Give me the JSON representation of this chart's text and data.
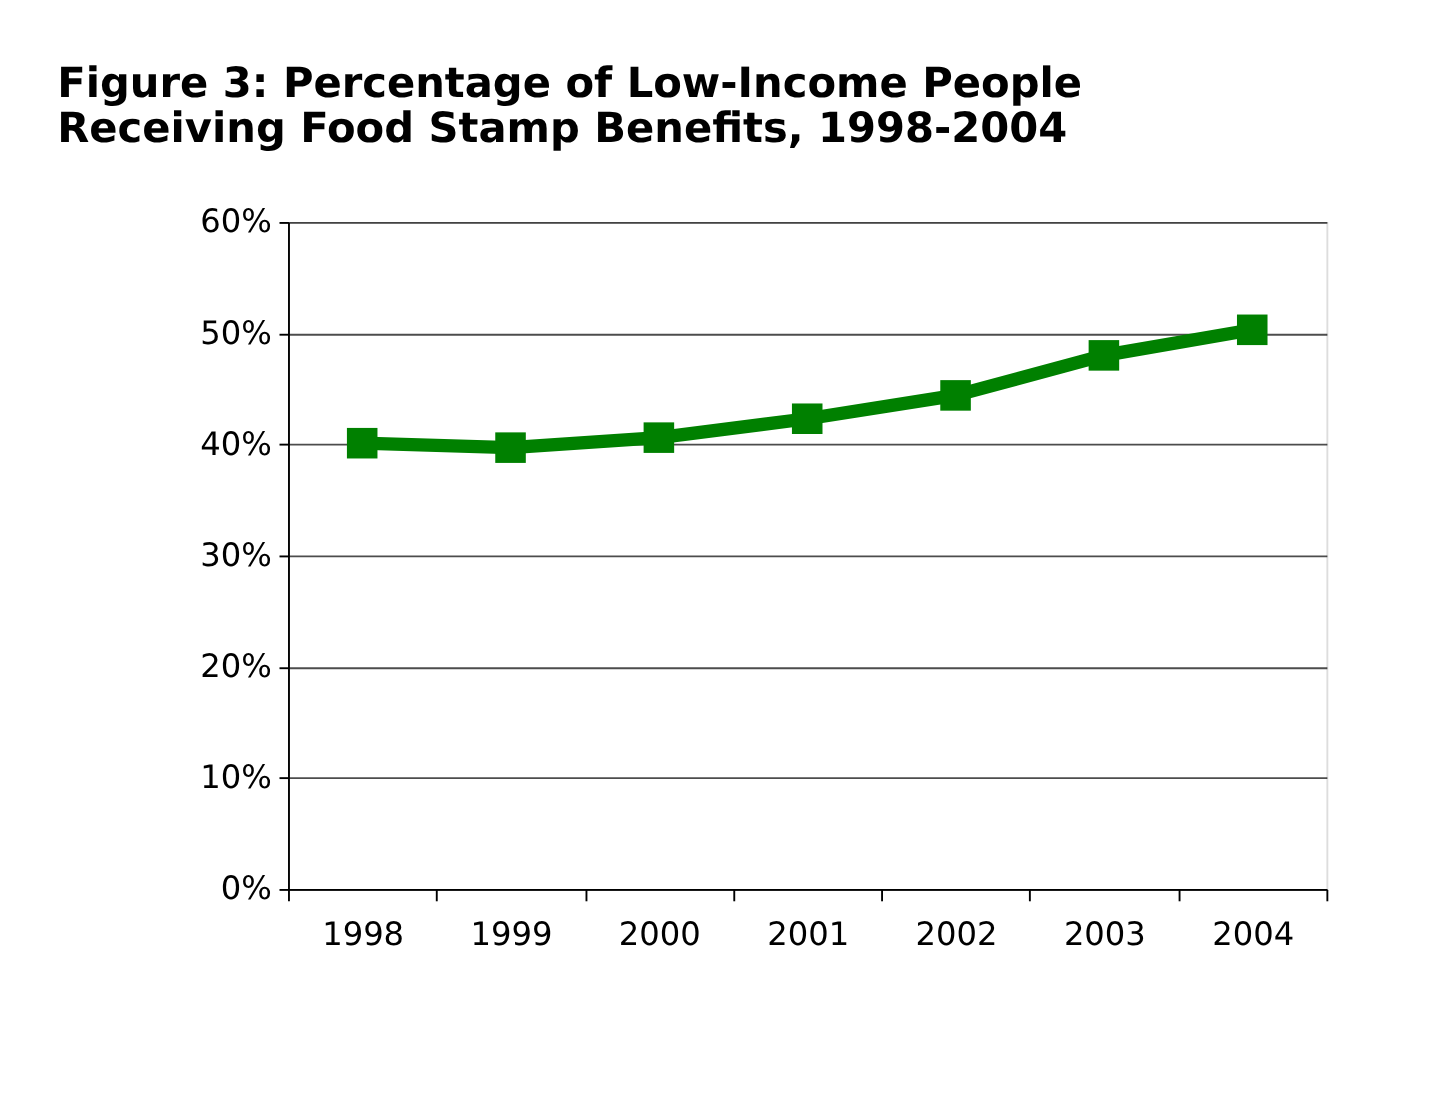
{
  "chart_data": {
    "type": "line",
    "title": [
      "Figure 3:  Percentage of Low-Income People",
      "Receiving Food Stamp Benefits, 1998-2004"
    ],
    "categories": [
      "1998",
      "1999",
      "2000",
      "2001",
      "2002",
      "2003",
      "2004"
    ],
    "series": [
      {
        "color": "#008000",
        "values": [
          0.401,
          0.397,
          0.406,
          0.423,
          0.444,
          0.48,
          0.503
        ]
      }
    ],
    "ylim": [
      0,
      0.6
    ],
    "yticks": [
      {
        "value": 0,
        "label": "0%"
      },
      {
        "value": 0.1,
        "label": "10%"
      },
      {
        "value": 0.2,
        "label": "20%"
      },
      {
        "value": 0.3,
        "label": "30%"
      },
      {
        "value": 0.4,
        "label": "40%"
      },
      {
        "value": 0.5,
        "label": "50%"
      },
      {
        "value": 0.6,
        "label": "60%"
      }
    ],
    "grid": "y",
    "marker": "square",
    "line_style": "solid"
  }
}
